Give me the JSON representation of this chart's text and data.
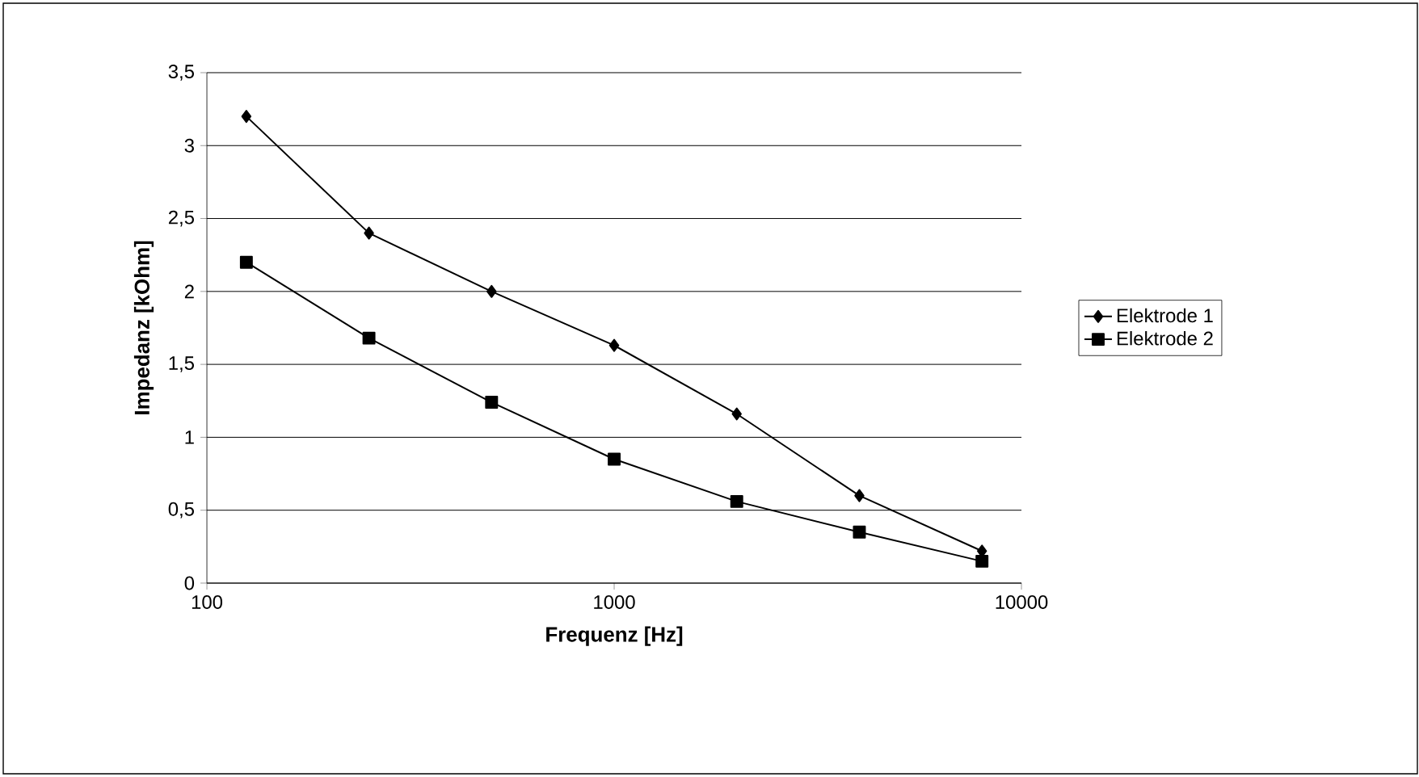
{
  "chart_data": {
    "type": "line",
    "xlabel": "Frequenz [Hz]",
    "ylabel": "Impedanz [kOhm]",
    "x": [
      125,
      250,
      500,
      1000,
      2000,
      4000,
      8000
    ],
    "series": [
      {
        "name": "Elektrode 1",
        "color": "#000000",
        "marker": "diamond",
        "values": [
          3.2,
          2.4,
          2.0,
          1.63,
          1.16,
          0.6,
          0.22
        ]
      },
      {
        "name": "Elektrode 2",
        "color": "#000000",
        "marker": "square",
        "values": [
          2.2,
          1.68,
          1.24,
          0.85,
          0.56,
          0.35,
          0.15
        ]
      }
    ],
    "log": "x",
    "xlim": [
      100,
      10000
    ],
    "xticks": [
      100,
      1000,
      10000
    ],
    "ylim": [
      0,
      3.5
    ],
    "yticks": [
      0,
      {
        "value": 0.5,
        "label": "0,5"
      },
      1,
      {
        "value": 1.5,
        "label": "1,5"
      },
      2,
      {
        "value": 2.5,
        "label": "2,5"
      },
      3,
      {
        "value": 3.5,
        "label": "3,5"
      }
    ],
    "grid": "y",
    "legend": "right",
    "line_style": "solid"
  }
}
